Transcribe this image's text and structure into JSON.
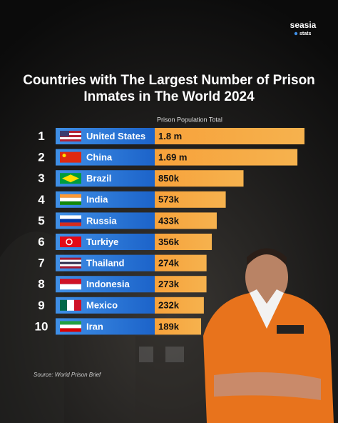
{
  "brand": {
    "name": "seasia",
    "tag": "stats"
  },
  "chart_data": {
    "type": "bar",
    "orientation": "horizontal",
    "title": "Countries with The Largest Number of Prison Inmates in The World 2024",
    "value_axis_label": "Prison Population Total",
    "ranks": [
      1,
      2,
      3,
      4,
      5,
      6,
      7,
      8,
      9,
      10
    ],
    "categories": [
      "United States",
      "China",
      "Brazil",
      "India",
      "Russia",
      "Turkiye",
      "Thailand",
      "Indonesia",
      "Mexico",
      "Iran"
    ],
    "values": [
      1800000,
      1690000,
      850000,
      573000,
      433000,
      356000,
      274000,
      273000,
      232000,
      189000
    ],
    "value_labels": [
      "1.8 m",
      "1.69 m",
      "850k",
      "573k",
      "433k",
      "356k",
      "274k",
      "273k",
      "232k",
      "189k"
    ],
    "color": "#f7a23b",
    "label_color": "#1f6fd1",
    "source": "Source: World Prison Brief"
  }
}
